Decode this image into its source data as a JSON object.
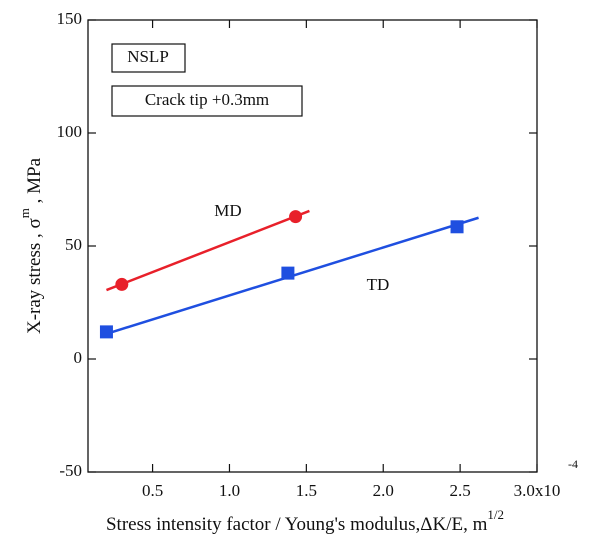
{
  "chart_data": {
    "type": "scatter",
    "ylabel": "X-ray stress , σ",
    "ylabel_superscript": "m",
    "ylabel_unit": " , MPa",
    "xlabel": "Stress intensity factor / Young's modulus,ΔK/E, m",
    "xlabel_superscript": "1/2",
    "x_exponent": "-4",
    "annotations": [
      "NSLP",
      "Crack tip +0.3mm"
    ],
    "xlim": [
      0.08,
      3.0
    ],
    "ylim": [
      -50,
      150
    ],
    "xticks": [
      0.5,
      {
        "value": 1,
        "label": "1.0"
      },
      1.5,
      {
        "value": 2,
        "label": "2.0"
      },
      2.5,
      {
        "value": 3,
        "label": "3.0x10"
      }
    ],
    "yticks": [
      -50,
      0,
      50,
      100,
      150
    ],
    "series": [
      {
        "name": "MD",
        "color": "#e8202a",
        "marker": "circle",
        "x": [
          0.3,
          1.43
        ],
        "values": [
          33,
          63
        ],
        "line_x": [
          0.2,
          1.52
        ],
        "line_y": [
          30.5,
          65.5
        ]
      },
      {
        "name": "TD",
        "color": "#1f4fe0",
        "marker": "square",
        "x": [
          0.2,
          1.38,
          2.48
        ],
        "values": [
          12,
          38,
          58.5
        ],
        "line_x": [
          0.17,
          2.62
        ],
        "line_y": [
          10.5,
          62.5
        ]
      }
    ]
  }
}
